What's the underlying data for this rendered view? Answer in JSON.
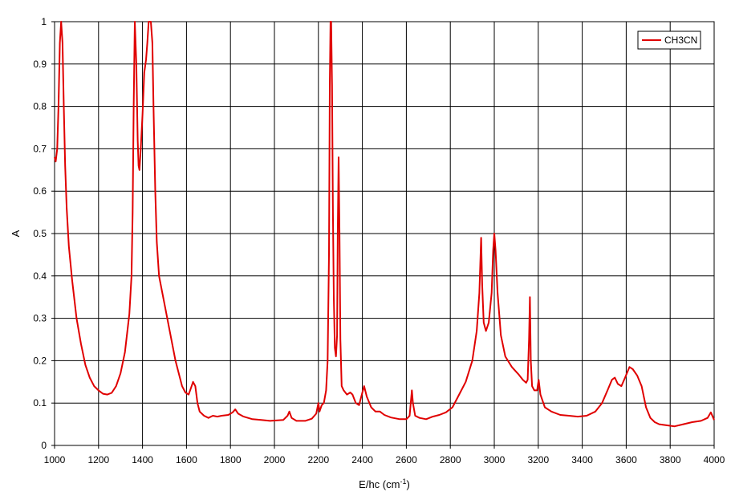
{
  "chart_data": {
    "type": "line",
    "title": "",
    "xlabel": "E/hc (cm",
    "xlabel_sup": "-1",
    "xlabel_end": ")",
    "ylabel": "A",
    "xlim": [
      1000,
      4000
    ],
    "ylim": [
      0,
      1
    ],
    "x_ticks": [
      1000,
      1200,
      1400,
      1600,
      1800,
      2000,
      2200,
      2400,
      2600,
      2800,
      3000,
      3200,
      3400,
      3600,
      3800,
      4000
    ],
    "y_ticks": [
      0,
      0.1,
      0.2,
      0.3,
      0.4,
      0.5,
      0.6,
      0.7,
      0.8,
      0.9,
      1
    ],
    "x_tick_labels": [
      "1000",
      "1200",
      "1400",
      "1600",
      "1800",
      "2000",
      "2200",
      "2400",
      "2600",
      "2800",
      "3000",
      "3200",
      "3400",
      "3600",
      "3800",
      "4000"
    ],
    "y_tick_labels": [
      "0",
      "0.1",
      "0.2",
      "0.3",
      "0.4",
      "0.5",
      "0.6",
      "0.7",
      "0.8",
      "0.9",
      "1"
    ],
    "grid": true,
    "legend_position": "top-right",
    "series": [
      {
        "name": "CH3CN",
        "color": "#e00000",
        "points": [
          [
            1000,
            0.68
          ],
          [
            1005,
            0.67
          ],
          [
            1012,
            0.7
          ],
          [
            1018,
            0.8
          ],
          [
            1024,
            0.95
          ],
          [
            1030,
            1.0
          ],
          [
            1036,
            0.95
          ],
          [
            1042,
            0.8
          ],
          [
            1048,
            0.66
          ],
          [
            1055,
            0.56
          ],
          [
            1065,
            0.47
          ],
          [
            1080,
            0.39
          ],
          [
            1100,
            0.3
          ],
          [
            1120,
            0.24
          ],
          [
            1140,
            0.19
          ],
          [
            1160,
            0.16
          ],
          [
            1180,
            0.14
          ],
          [
            1200,
            0.13
          ],
          [
            1220,
            0.122
          ],
          [
            1240,
            0.12
          ],
          [
            1260,
            0.124
          ],
          [
            1280,
            0.14
          ],
          [
            1300,
            0.17
          ],
          [
            1320,
            0.22
          ],
          [
            1340,
            0.31
          ],
          [
            1350,
            0.4
          ],
          [
            1355,
            0.55
          ],
          [
            1360,
            0.8
          ],
          [
            1365,
            1.0
          ],
          [
            1372,
            0.9
          ],
          [
            1378,
            0.72
          ],
          [
            1382,
            0.66
          ],
          [
            1386,
            0.65
          ],
          [
            1392,
            0.7
          ],
          [
            1400,
            0.78
          ],
          [
            1408,
            0.88
          ],
          [
            1416,
            0.91
          ],
          [
            1422,
            0.95
          ],
          [
            1428,
            1.0
          ],
          [
            1438,
            1.0
          ],
          [
            1445,
            0.95
          ],
          [
            1450,
            0.8
          ],
          [
            1458,
            0.6
          ],
          [
            1465,
            0.48
          ],
          [
            1475,
            0.4
          ],
          [
            1490,
            0.36
          ],
          [
            1505,
            0.32
          ],
          [
            1520,
            0.28
          ],
          [
            1535,
            0.24
          ],
          [
            1550,
            0.2
          ],
          [
            1565,
            0.17
          ],
          [
            1580,
            0.14
          ],
          [
            1595,
            0.125
          ],
          [
            1610,
            0.12
          ],
          [
            1620,
            0.135
          ],
          [
            1630,
            0.15
          ],
          [
            1640,
            0.14
          ],
          [
            1650,
            0.1
          ],
          [
            1660,
            0.08
          ],
          [
            1680,
            0.07
          ],
          [
            1700,
            0.065
          ],
          [
            1720,
            0.07
          ],
          [
            1740,
            0.068
          ],
          [
            1760,
            0.07
          ],
          [
            1790,
            0.072
          ],
          [
            1810,
            0.078
          ],
          [
            1822,
            0.085
          ],
          [
            1835,
            0.075
          ],
          [
            1860,
            0.068
          ],
          [
            1900,
            0.062
          ],
          [
            1940,
            0.06
          ],
          [
            1980,
            0.058
          ],
          [
            2040,
            0.06
          ],
          [
            2060,
            0.07
          ],
          [
            2068,
            0.08
          ],
          [
            2078,
            0.065
          ],
          [
            2100,
            0.058
          ],
          [
            2140,
            0.058
          ],
          [
            2170,
            0.063
          ],
          [
            2190,
            0.075
          ],
          [
            2200,
            0.1
          ],
          [
            2205,
            0.08
          ],
          [
            2215,
            0.095
          ],
          [
            2225,
            0.1
          ],
          [
            2235,
            0.13
          ],
          [
            2242,
            0.2
          ],
          [
            2248,
            0.45
          ],
          [
            2252,
            0.85
          ],
          [
            2255,
            1.0
          ],
          [
            2258,
            1.0
          ],
          [
            2262,
            0.85
          ],
          [
            2266,
            0.55
          ],
          [
            2270,
            0.35
          ],
          [
            2275,
            0.23
          ],
          [
            2280,
            0.21
          ],
          [
            2285,
            0.26
          ],
          [
            2288,
            0.5
          ],
          [
            2292,
            0.68
          ],
          [
            2296,
            0.5
          ],
          [
            2300,
            0.25
          ],
          [
            2306,
            0.14
          ],
          [
            2315,
            0.13
          ],
          [
            2330,
            0.12
          ],
          [
            2345,
            0.125
          ],
          [
            2355,
            0.12
          ],
          [
            2370,
            0.1
          ],
          [
            2385,
            0.095
          ],
          [
            2400,
            0.125
          ],
          [
            2408,
            0.14
          ],
          [
            2420,
            0.115
          ],
          [
            2440,
            0.09
          ],
          [
            2460,
            0.08
          ],
          [
            2480,
            0.08
          ],
          [
            2500,
            0.072
          ],
          [
            2530,
            0.066
          ],
          [
            2570,
            0.062
          ],
          [
            2600,
            0.062
          ],
          [
            2615,
            0.07
          ],
          [
            2625,
            0.13
          ],
          [
            2630,
            0.1
          ],
          [
            2640,
            0.07
          ],
          [
            2660,
            0.065
          ],
          [
            2690,
            0.062
          ],
          [
            2720,
            0.068
          ],
          [
            2750,
            0.072
          ],
          [
            2780,
            0.078
          ],
          [
            2810,
            0.09
          ],
          [
            2840,
            0.12
          ],
          [
            2870,
            0.15
          ],
          [
            2900,
            0.2
          ],
          [
            2920,
            0.27
          ],
          [
            2932,
            0.36
          ],
          [
            2940,
            0.49
          ],
          [
            2945,
            0.38
          ],
          [
            2952,
            0.29
          ],
          [
            2962,
            0.27
          ],
          [
            2975,
            0.29
          ],
          [
            2988,
            0.36
          ],
          [
            2995,
            0.46
          ],
          [
            3000,
            0.5
          ],
          [
            3006,
            0.46
          ],
          [
            3015,
            0.36
          ],
          [
            3030,
            0.26
          ],
          [
            3050,
            0.21
          ],
          [
            3080,
            0.185
          ],
          [
            3110,
            0.168
          ],
          [
            3130,
            0.155
          ],
          [
            3145,
            0.148
          ],
          [
            3152,
            0.155
          ],
          [
            3158,
            0.25
          ],
          [
            3162,
            0.35
          ],
          [
            3166,
            0.2
          ],
          [
            3172,
            0.14
          ],
          [
            3182,
            0.13
          ],
          [
            3195,
            0.13
          ],
          [
            3202,
            0.155
          ],
          [
            3210,
            0.12
          ],
          [
            3230,
            0.09
          ],
          [
            3260,
            0.08
          ],
          [
            3300,
            0.072
          ],
          [
            3340,
            0.07
          ],
          [
            3380,
            0.068
          ],
          [
            3420,
            0.07
          ],
          [
            3460,
            0.08
          ],
          [
            3490,
            0.1
          ],
          [
            3515,
            0.13
          ],
          [
            3535,
            0.155
          ],
          [
            3548,
            0.16
          ],
          [
            3562,
            0.145
          ],
          [
            3578,
            0.14
          ],
          [
            3595,
            0.16
          ],
          [
            3615,
            0.185
          ],
          [
            3630,
            0.18
          ],
          [
            3650,
            0.165
          ],
          [
            3670,
            0.14
          ],
          [
            3690,
            0.09
          ],
          [
            3710,
            0.065
          ],
          [
            3730,
            0.055
          ],
          [
            3750,
            0.05
          ],
          [
            3780,
            0.048
          ],
          [
            3820,
            0.045
          ],
          [
            3860,
            0.05
          ],
          [
            3900,
            0.055
          ],
          [
            3940,
            0.058
          ],
          [
            3970,
            0.065
          ],
          [
            3985,
            0.078
          ],
          [
            4000,
            0.06
          ]
        ]
      }
    ]
  }
}
